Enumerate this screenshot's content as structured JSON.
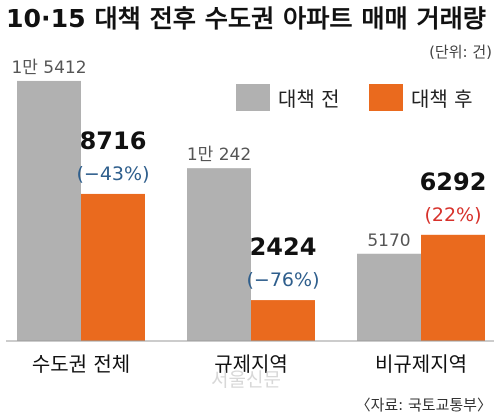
{
  "chart_data": {
    "type": "bar",
    "title": "10·15 대책 전후 수도권 아파트 매매 거래량",
    "unit_note": "(단위: 건)",
    "source": "〈자료: 국토교통부〉",
    "watermark": "서울신문",
    "categories": [
      "수도권 전체",
      "규제지역",
      "비규제지역"
    ],
    "series": [
      {
        "name": "대책 전",
        "values": [
          15412,
          10242,
          5170
        ],
        "labels": [
          "1만 5412",
          "1만 242",
          "5170"
        ]
      },
      {
        "name": "대책 후",
        "values": [
          8716,
          2424,
          6292
        ],
        "labels": [
          "8716",
          "2424",
          "6292"
        ]
      }
    ],
    "changes": [
      "(−43%)",
      "(−76%)",
      "(22%)"
    ],
    "change_colors": [
      "#2e5e8c",
      "#2e5e8c",
      "#d7312b"
    ],
    "colors": {
      "before": "#b1b1b1",
      "after": "#ea6a1e",
      "title": "#111111"
    },
    "ylim": [
      0,
      16000
    ],
    "legend_position": "top-right",
    "grid": false
  }
}
